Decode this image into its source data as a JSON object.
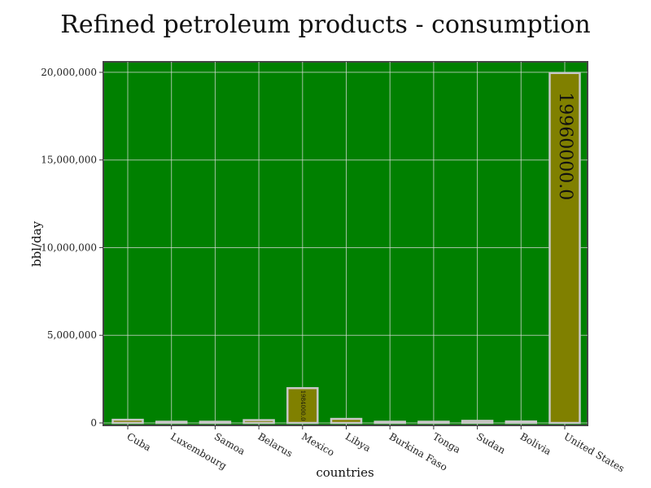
{
  "chart_data": {
    "type": "bar",
    "title": "Refined petroleum products - consumption",
    "xlabel": "countries",
    "ylabel": "bbl/day",
    "categories": [
      "Cuba",
      "Luxembourg",
      "Samoa",
      "Belarus",
      "Mexico",
      "Libya",
      "Burkina Faso",
      "Tonga",
      "Sudan",
      "Bolivia",
      "United States"
    ],
    "values": [
      180000,
      60000,
      1500,
      160000,
      1984000,
      230000,
      18000,
      1200,
      120000,
      85000,
      19960000
    ],
    "data_labels": [
      "",
      "",
      "",
      "",
      "1984000.0",
      "",
      "",
      "",
      "",
      "",
      "19960000.0"
    ],
    "ylim": [
      0,
      20600000
    ],
    "yticks": [
      0,
      5000000,
      10000000,
      15000000,
      20000000
    ],
    "ytick_labels": [
      "0",
      "5,000,000",
      "10,000,000",
      "15,000,000",
      "20,000,000"
    ],
    "grid": true,
    "colors": {
      "plot_background": "#008000",
      "bar_fill": "#808000",
      "bar_edge": "#c8c8c8",
      "grid": "#d9d9d9"
    }
  }
}
